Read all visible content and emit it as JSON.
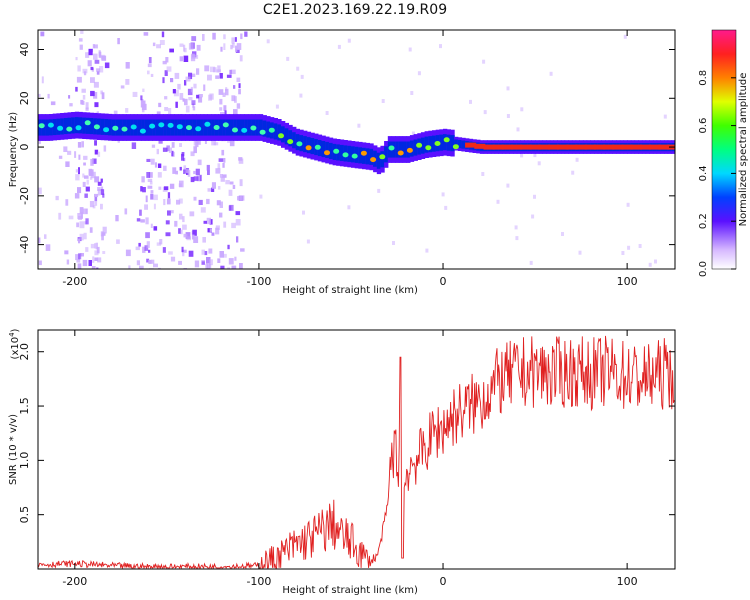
{
  "page": {
    "title": "C2E1.2023.169.22.19.R09"
  },
  "chart_data": [
    {
      "type": "heatmap",
      "xlabel": "Height of straight line (km)",
      "ylabel": "Frequency (Hz)",
      "xlim": [
        -220,
        126
      ],
      "ylim": [
        -50,
        48
      ],
      "xticks": [
        -200,
        -100,
        0,
        100
      ],
      "yticks": [
        -40,
        -20,
        0,
        20,
        40
      ],
      "ridge": [
        {
          "x": -215,
          "y": 8
        },
        {
          "x": -200,
          "y": 9
        },
        {
          "x": -180,
          "y": 8
        },
        {
          "x": -160,
          "y": 8
        },
        {
          "x": -140,
          "y": 8
        },
        {
          "x": -120,
          "y": 8
        },
        {
          "x": -100,
          "y": 8
        },
        {
          "x": -90,
          "y": 6
        },
        {
          "x": -80,
          "y": 2
        },
        {
          "x": -70,
          "y": 0
        },
        {
          "x": -60,
          "y": -2
        },
        {
          "x": -50,
          "y": -3
        },
        {
          "x": -40,
          "y": -4
        },
        {
          "x": -35,
          "y": -6
        },
        {
          "x": -30,
          "y": -1
        },
        {
          "x": -20,
          "y": -1
        },
        {
          "x": -10,
          "y": 1
        },
        {
          "x": 0,
          "y": 2
        },
        {
          "x": 10,
          "y": 1
        },
        {
          "x": 20,
          "y": 0
        },
        {
          "x": 60,
          "y": 0
        },
        {
          "x": 100,
          "y": 0
        },
        {
          "x": 126,
          "y": 0
        }
      ],
      "colorbar": {
        "label": "Normalized spectral amplitude",
        "ticks": [
          "0.0",
          "0.2",
          "0.4",
          "0.6",
          "0.8"
        ],
        "range": [
          0,
          1
        ]
      }
    },
    {
      "type": "line",
      "xlabel": "Height of straight line (km)",
      "ylabel": "SNR (10 * v/v)",
      "multiplier_label": "(x10",
      "multiplier_exp": "4",
      "multiplier_close": ")",
      "xlim": [
        -220,
        126
      ],
      "ylim": [
        0,
        2.2
      ],
      "xticks": [
        -200,
        -100,
        0,
        100
      ],
      "yticks": [
        "0.5",
        "1.0",
        "1.5",
        "2.0"
      ],
      "series": [
        {
          "color": "#e02020",
          "points": [
            [
              -220,
              0.04
            ],
            [
              -200,
              0.05
            ],
            [
              -180,
              0.03
            ],
            [
              -160,
              0.02
            ],
            [
              -140,
              0.02
            ],
            [
              -120,
              0.02
            ],
            [
              -100,
              0.03
            ],
            [
              -90,
              0.1
            ],
            [
              -80,
              0.22
            ],
            [
              -70,
              0.3
            ],
            [
              -60,
              0.42
            ],
            [
              -55,
              0.3
            ],
            [
              -50,
              0.25
            ],
            [
              -45,
              0.15
            ],
            [
              -40,
              0.05
            ],
            [
              -35,
              0.15
            ],
            [
              -30,
              0.6
            ],
            [
              -28,
              1.05
            ],
            [
              -26,
              1.1
            ],
            [
              -24,
              0.9
            ],
            [
              -23,
              1.95
            ],
            [
              -22,
              0.5
            ],
            [
              -20,
              0.9
            ],
            [
              -15,
              1.0
            ],
            [
              -10,
              1.1
            ],
            [
              -5,
              1.25
            ],
            [
              0,
              1.3
            ],
            [
              5,
              1.4
            ],
            [
              10,
              1.45
            ],
            [
              20,
              1.55
            ],
            [
              30,
              1.72
            ],
            [
              40,
              1.8
            ],
            [
              50,
              1.82
            ],
            [
              60,
              1.8
            ],
            [
              70,
              1.82
            ],
            [
              80,
              1.8
            ],
            [
              90,
              1.82
            ],
            [
              100,
              1.78
            ],
            [
              110,
              1.75
            ],
            [
              120,
              1.8
            ],
            [
              126,
              1.8
            ]
          ]
        }
      ]
    }
  ]
}
